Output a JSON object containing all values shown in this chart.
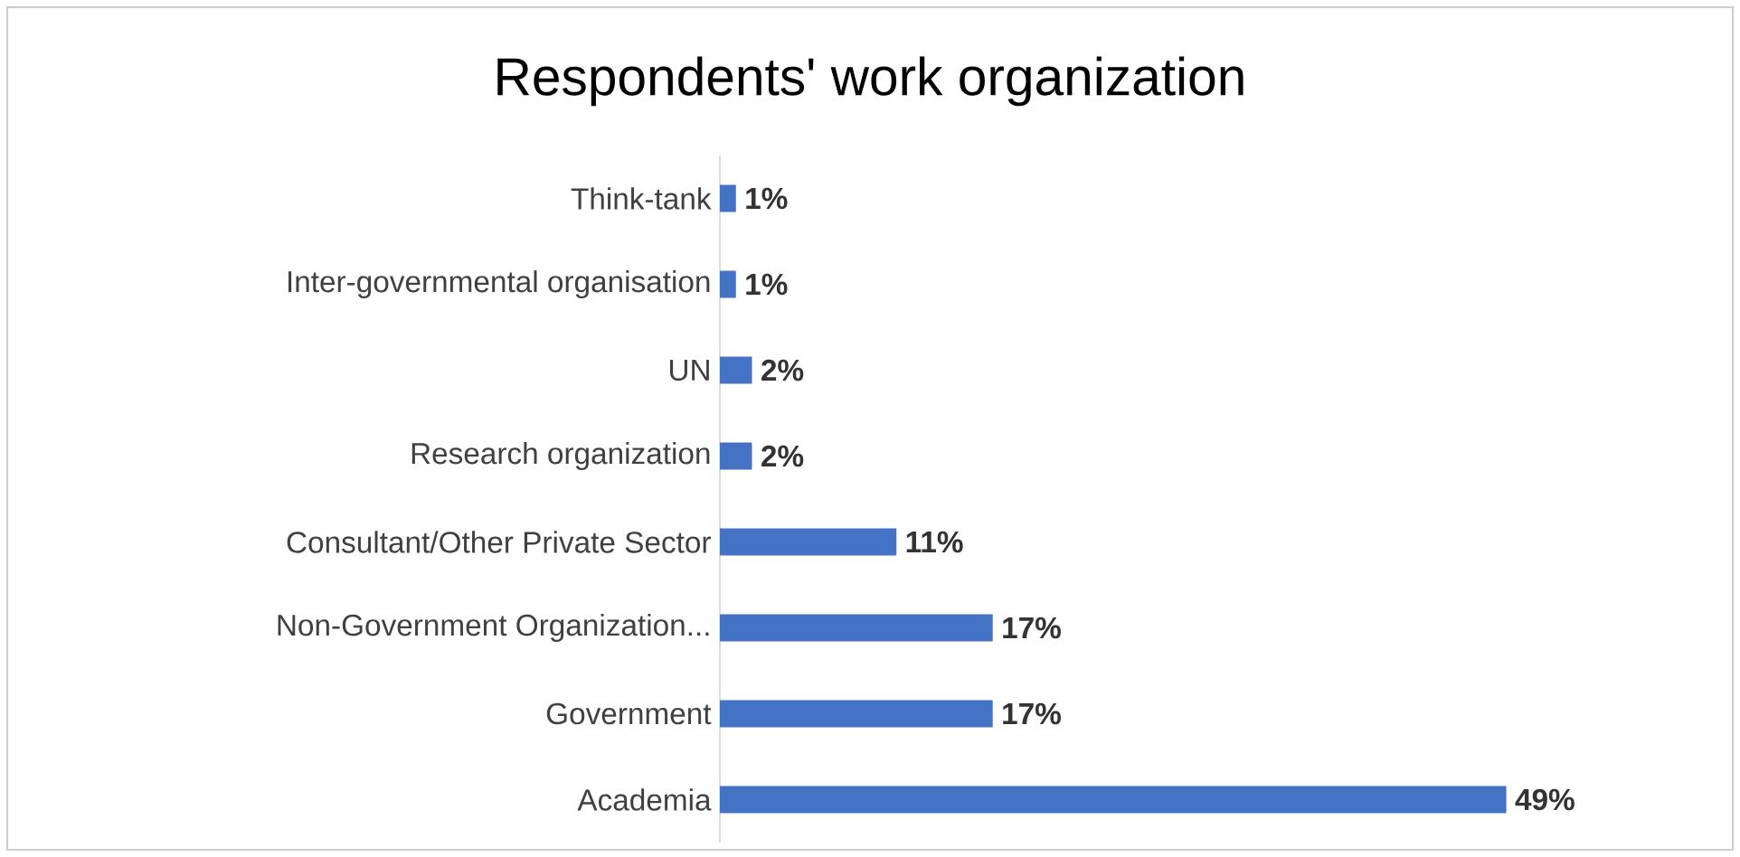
{
  "chart_data": {
    "type": "bar",
    "orientation": "horizontal",
    "title": "Respondents' work organization",
    "categories": [
      "Think-tank",
      "Inter-governmental organisation",
      "UN",
      "Research organization",
      "Consultant/Other Private Sector",
      "Non-Government Organization...",
      "Government",
      "Academia"
    ],
    "values": [
      1,
      1,
      2,
      2,
      11,
      17,
      17,
      49
    ],
    "value_labels": [
      "1%",
      "1%",
      "2%",
      "2%",
      "11%",
      "17%",
      "17%",
      "49%"
    ],
    "color": "#4472c4"
  }
}
